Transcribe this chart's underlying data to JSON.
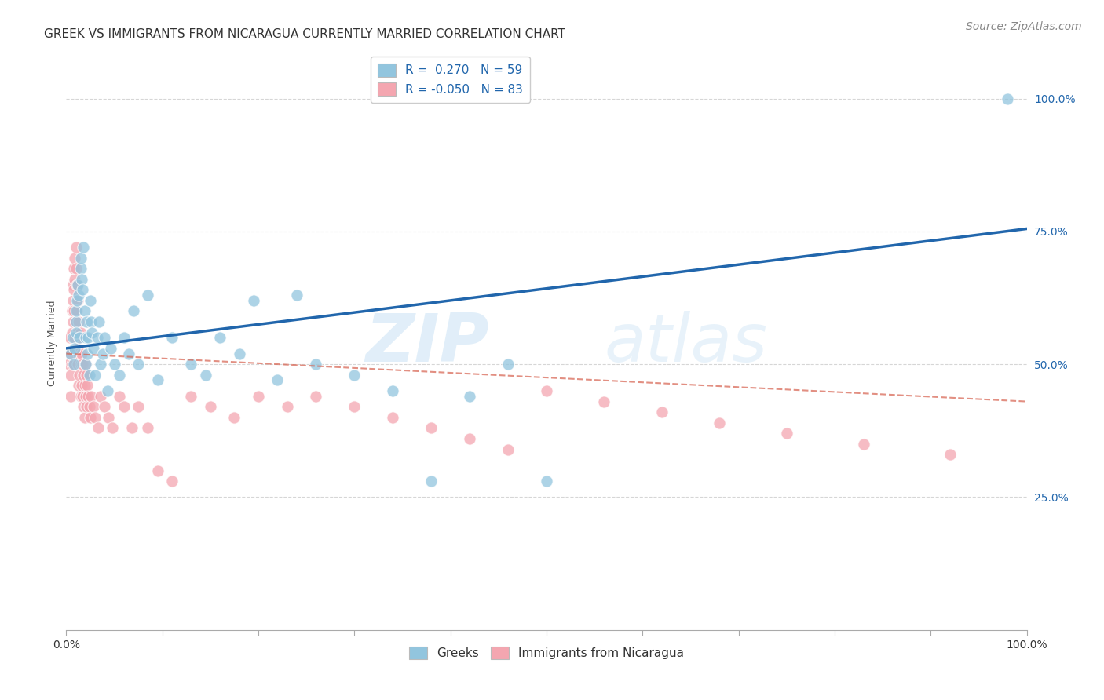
{
  "title": "GREEK VS IMMIGRANTS FROM NICARAGUA CURRENTLY MARRIED CORRELATION CHART",
  "source": "Source: ZipAtlas.com",
  "ylabel": "Currently Married",
  "ytick_labels": [
    "25.0%",
    "50.0%",
    "75.0%",
    "100.0%"
  ],
  "ytick_values": [
    0.25,
    0.5,
    0.75,
    1.0
  ],
  "xlim": [
    0.0,
    1.0
  ],
  "ylim": [
    0.0,
    1.08
  ],
  "legend_r_blue": " 0.270",
  "legend_n_blue": "59",
  "legend_r_pink": "-0.050",
  "legend_n_pink": "83",
  "blue_color": "#92c5de",
  "pink_color": "#f4a6b0",
  "blue_line_color": "#2166ac",
  "pink_line_color": "#d6604d",
  "watermark_zip": "ZIP",
  "watermark_atlas": "atlas",
  "blue_scatter_x": [
    0.005,
    0.007,
    0.008,
    0.009,
    0.01,
    0.01,
    0.01,
    0.011,
    0.012,
    0.013,
    0.014,
    0.015,
    0.015,
    0.016,
    0.017,
    0.018,
    0.019,
    0.02,
    0.02,
    0.021,
    0.022,
    0.023,
    0.024,
    0.025,
    0.026,
    0.027,
    0.028,
    0.03,
    0.032,
    0.034,
    0.036,
    0.038,
    0.04,
    0.043,
    0.046,
    0.05,
    0.055,
    0.06,
    0.065,
    0.07,
    0.075,
    0.085,
    0.095,
    0.11,
    0.13,
    0.145,
    0.16,
    0.18,
    0.195,
    0.22,
    0.24,
    0.26,
    0.3,
    0.34,
    0.38,
    0.42,
    0.46,
    0.5,
    0.98
  ],
  "blue_scatter_y": [
    0.52,
    0.55,
    0.5,
    0.53,
    0.58,
    0.56,
    0.6,
    0.62,
    0.65,
    0.63,
    0.55,
    0.68,
    0.7,
    0.66,
    0.64,
    0.72,
    0.6,
    0.55,
    0.5,
    0.58,
    0.52,
    0.55,
    0.48,
    0.62,
    0.58,
    0.56,
    0.53,
    0.48,
    0.55,
    0.58,
    0.5,
    0.52,
    0.55,
    0.45,
    0.53,
    0.5,
    0.48,
    0.55,
    0.52,
    0.6,
    0.5,
    0.63,
    0.47,
    0.55,
    0.5,
    0.48,
    0.55,
    0.52,
    0.62,
    0.47,
    0.63,
    0.5,
    0.48,
    0.45,
    0.28,
    0.44,
    0.5,
    0.28,
    1.0
  ],
  "pink_scatter_x": [
    0.003,
    0.004,
    0.005,
    0.005,
    0.005,
    0.006,
    0.006,
    0.006,
    0.007,
    0.007,
    0.007,
    0.008,
    0.008,
    0.008,
    0.009,
    0.009,
    0.009,
    0.01,
    0.01,
    0.01,
    0.011,
    0.011,
    0.011,
    0.012,
    0.012,
    0.012,
    0.013,
    0.013,
    0.013,
    0.014,
    0.014,
    0.015,
    0.015,
    0.015,
    0.016,
    0.016,
    0.017,
    0.017,
    0.018,
    0.018,
    0.019,
    0.019,
    0.02,
    0.02,
    0.021,
    0.021,
    0.022,
    0.023,
    0.024,
    0.025,
    0.026,
    0.028,
    0.03,
    0.033,
    0.036,
    0.04,
    0.044,
    0.048,
    0.055,
    0.06,
    0.068,
    0.075,
    0.085,
    0.095,
    0.11,
    0.13,
    0.15,
    0.175,
    0.2,
    0.23,
    0.26,
    0.3,
    0.34,
    0.38,
    0.42,
    0.46,
    0.5,
    0.56,
    0.62,
    0.68,
    0.75,
    0.83,
    0.92
  ],
  "pink_scatter_y": [
    0.5,
    0.55,
    0.52,
    0.48,
    0.44,
    0.6,
    0.56,
    0.5,
    0.65,
    0.62,
    0.58,
    0.68,
    0.64,
    0.6,
    0.7,
    0.66,
    0.55,
    0.72,
    0.68,
    0.58,
    0.65,
    0.6,
    0.53,
    0.62,
    0.56,
    0.5,
    0.58,
    0.52,
    0.46,
    0.55,
    0.48,
    0.56,
    0.5,
    0.44,
    0.52,
    0.46,
    0.5,
    0.44,
    0.48,
    0.42,
    0.46,
    0.4,
    0.5,
    0.44,
    0.48,
    0.42,
    0.46,
    0.44,
    0.42,
    0.4,
    0.44,
    0.42,
    0.4,
    0.38,
    0.44,
    0.42,
    0.4,
    0.38,
    0.44,
    0.42,
    0.38,
    0.42,
    0.38,
    0.3,
    0.28,
    0.44,
    0.42,
    0.4,
    0.44,
    0.42,
    0.44,
    0.42,
    0.4,
    0.38,
    0.36,
    0.34,
    0.45,
    0.43,
    0.41,
    0.39,
    0.37,
    0.35,
    0.33
  ],
  "blue_line_y_start": 0.53,
  "blue_line_y_end": 0.755,
  "pink_line_y_start": 0.52,
  "pink_line_y_end": 0.43,
  "title_fontsize": 11,
  "axis_label_fontsize": 9,
  "tick_fontsize": 10,
  "legend_fontsize": 11,
  "source_fontsize": 10
}
